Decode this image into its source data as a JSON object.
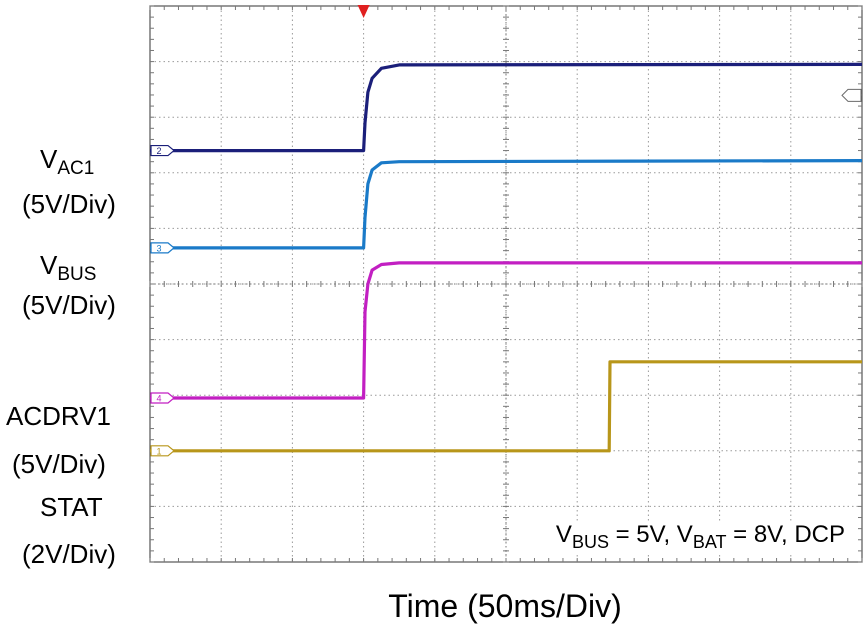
{
  "chart_data": {
    "type": "line",
    "title": "",
    "xlabel": "Time (50ms/Div)",
    "ylabel": "",
    "x_unit": "div",
    "y_unit": "div",
    "xlim": [
      0,
      10
    ],
    "ylim": [
      0,
      10
    ],
    "grid": true,
    "condition": {
      "parts": [
        {
          "text": "V",
          "sub": "BUS"
        },
        {
          "text": " = 5V, V",
          "sub": "BAT"
        },
        {
          "text": " = 8V, DCP",
          "sub": ""
        }
      ]
    },
    "series": [
      {
        "name": "VAC1",
        "label_main": "V",
        "label_sub": "AC1",
        "scale": "(5V/Div)",
        "color": "#1b1f7a",
        "marker_text": "2",
        "x": [
          0,
          3.0,
          3.02,
          3.06,
          3.12,
          3.25,
          3.5,
          10
        ],
        "y": [
          7.4,
          7.4,
          7.9,
          8.45,
          8.7,
          8.88,
          8.94,
          8.95
        ]
      },
      {
        "name": "VBUS",
        "label_main": "V",
        "label_sub": "BUS",
        "scale": "(5V/Div)",
        "color": "#1a7ac8",
        "marker_text": "3",
        "x": [
          0,
          3.0,
          3.02,
          3.06,
          3.12,
          3.25,
          3.5,
          10
        ],
        "y": [
          5.65,
          5.65,
          6.2,
          6.8,
          7.05,
          7.18,
          7.2,
          7.22
        ]
      },
      {
        "name": "ACDRV1",
        "label_main": "ACDRV1",
        "label_sub": "",
        "scale": "(5V/Div)",
        "color": "#c21fc2",
        "marker_text": "4",
        "x": [
          0,
          3.0,
          3.02,
          3.06,
          3.12,
          3.25,
          3.5,
          10
        ],
        "y": [
          2.95,
          2.95,
          4.5,
          5.0,
          5.25,
          5.35,
          5.38,
          5.38
        ]
      },
      {
        "name": "STAT",
        "label_main": "STAT",
        "label_sub": "",
        "scale": "(2V/Div)",
        "color": "#b8961a",
        "marker_text": "1",
        "x": [
          0,
          6.45,
          6.46,
          10
        ],
        "y": [
          2.0,
          2.0,
          3.6,
          3.6
        ]
      }
    ],
    "trigger_time_div": 3.0
  }
}
